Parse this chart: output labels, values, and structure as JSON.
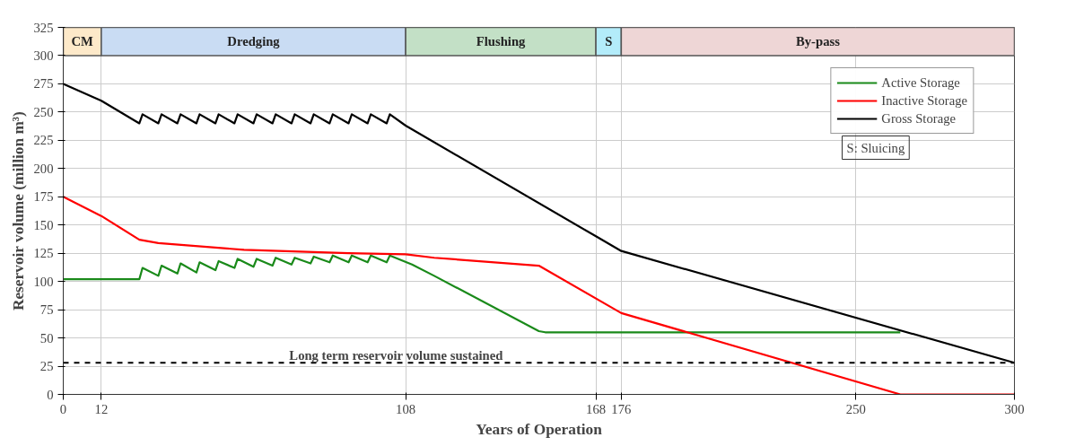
{
  "chart_data": {
    "type": "line",
    "xlabel": "Years of Operation",
    "ylabel": "Reservoir volume (million m³)",
    "xlim": [
      0,
      300
    ],
    "xticks": [
      0,
      12,
      108,
      168,
      176,
      250,
      300
    ],
    "ylim": [
      0,
      325
    ],
    "yticks": [
      0,
      25,
      50,
      75,
      100,
      125,
      150,
      175,
      200,
      225,
      250,
      275,
      300,
      325
    ],
    "grid": true,
    "legend": "top right",
    "line_style": "solid",
    "series": [
      {
        "name": "Active Storage",
        "color": "#1a8a1a",
        "x": [
          0,
          24,
          25,
          30,
          31,
          36,
          37,
          42,
          43,
          48,
          49,
          54,
          55,
          60,
          61,
          66,
          67,
          72,
          73,
          78,
          79,
          84,
          85,
          90,
          91,
          96,
          97,
          102,
          103,
          110,
          117,
          150,
          152,
          264
        ],
        "values": [
          102,
          102,
          112,
          105,
          114,
          107,
          116,
          108,
          117,
          110,
          118,
          112,
          120,
          113,
          120,
          114,
          121,
          115,
          121,
          116,
          122,
          117,
          123,
          117,
          123,
          117,
          123,
          117,
          123,
          115,
          105,
          56,
          55,
          55
        ]
      },
      {
        "name": "Inactive Storage",
        "color": "#ff0000",
        "x": [
          0,
          12,
          24,
          30,
          57,
          90,
          108,
          117,
          150,
          176,
          264,
          300
        ],
        "values": [
          175,
          158,
          137,
          134,
          128,
          125,
          124,
          121,
          114,
          72,
          0,
          0
        ]
      },
      {
        "name": "Gross Storage",
        "color": "#000000",
        "x": [
          0,
          12,
          24,
          25,
          30,
          31,
          36,
          37,
          42,
          43,
          48,
          49,
          54,
          55,
          60,
          61,
          66,
          67,
          72,
          73,
          78,
          79,
          84,
          85,
          90,
          91,
          96,
          97,
          102,
          103,
          108,
          168,
          176,
          300
        ],
        "values": [
          275,
          260,
          240,
          248,
          240,
          248,
          240,
          248,
          240,
          248,
          240,
          248,
          240,
          248,
          240,
          248,
          240,
          248,
          240,
          248,
          240,
          248,
          240,
          248,
          240,
          248,
          240,
          248,
          240,
          248,
          238,
          140,
          127,
          28
        ]
      }
    ],
    "ref_lines": [
      {
        "axis": "y",
        "value": 28,
        "label": "Long term reservoir volume sustained",
        "color": "#000000",
        "line_style": "dashed"
      }
    ],
    "bands": [
      {
        "axis": "x",
        "from": 0,
        "to": 12,
        "label": "CM",
        "color": "#fde9c9"
      },
      {
        "axis": "x",
        "from": 12,
        "to": 108,
        "label": "Dredging",
        "color": "#c9dcf3"
      },
      {
        "axis": "x",
        "from": 108,
        "to": 168,
        "label": "Flushing",
        "color": "#c3e0c6"
      },
      {
        "axis": "x",
        "from": 168,
        "to": 176,
        "label": "S",
        "color": "#b3ecfa"
      },
      {
        "axis": "x",
        "from": 176,
        "to": 300,
        "label": "By-pass",
        "color": "#eed6d6"
      }
    ],
    "annotations": [
      "S: Sluicing"
    ]
  }
}
